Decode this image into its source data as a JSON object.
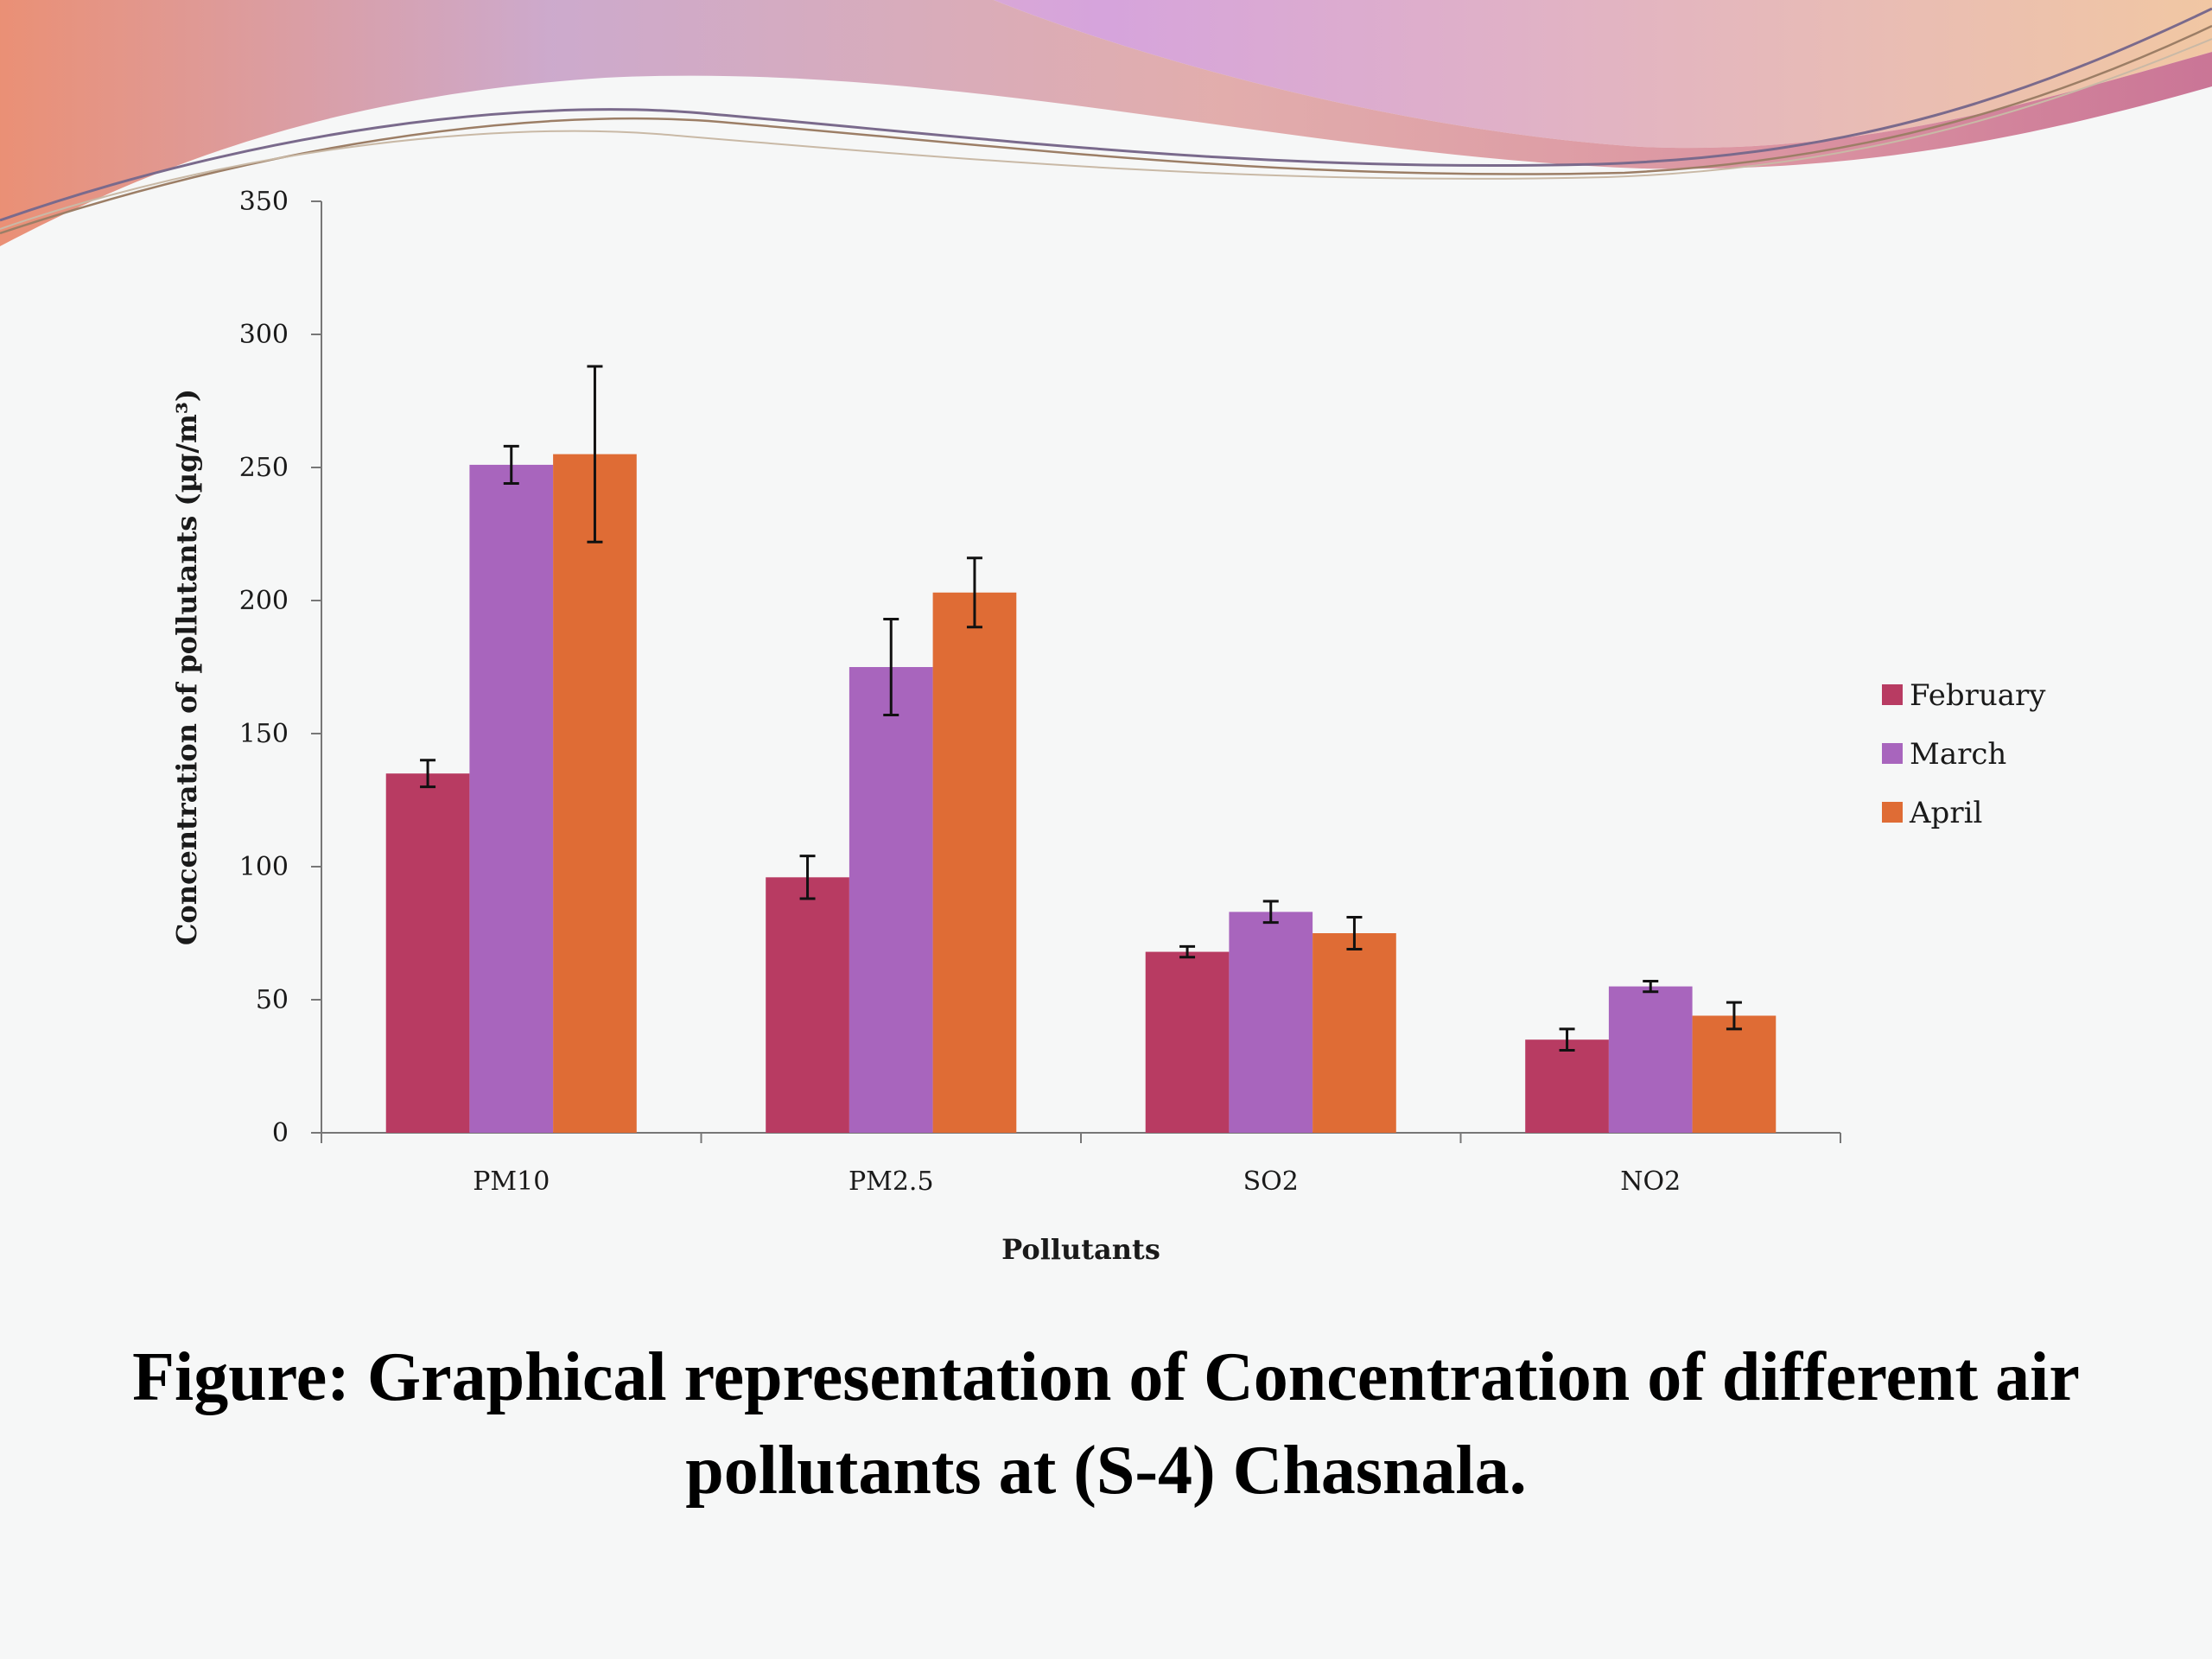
{
  "caption": {
    "line1": "Figure:  Graphical representation of Concentration of different air",
    "line2": "pollutants at (S-4) Chasnala."
  },
  "chart_data": {
    "type": "bar",
    "categories": [
      "PM10",
      "PM2.5",
      "SO2",
      "NO2"
    ],
    "series": [
      {
        "name": "February",
        "color": "#b83b62",
        "values": [
          135,
          96,
          68,
          35
        ],
        "errors": [
          5,
          8,
          2,
          4
        ]
      },
      {
        "name": "March",
        "color": "#a865bd",
        "values": [
          251,
          175,
          83,
          55
        ],
        "errors": [
          7,
          18,
          4,
          2
        ]
      },
      {
        "name": "April",
        "color": "#df6c35",
        "values": [
          255,
          203,
          75,
          44
        ],
        "errors": [
          33,
          13,
          6,
          5
        ]
      }
    ],
    "xlabel": "Pollutants",
    "ylabel": "Concentration of pollutants (µg/m³)",
    "ylim": [
      0,
      350
    ],
    "yticks": [
      0,
      50,
      100,
      150,
      200,
      250,
      300,
      350
    ],
    "legend_position": "right",
    "grid": false
  }
}
